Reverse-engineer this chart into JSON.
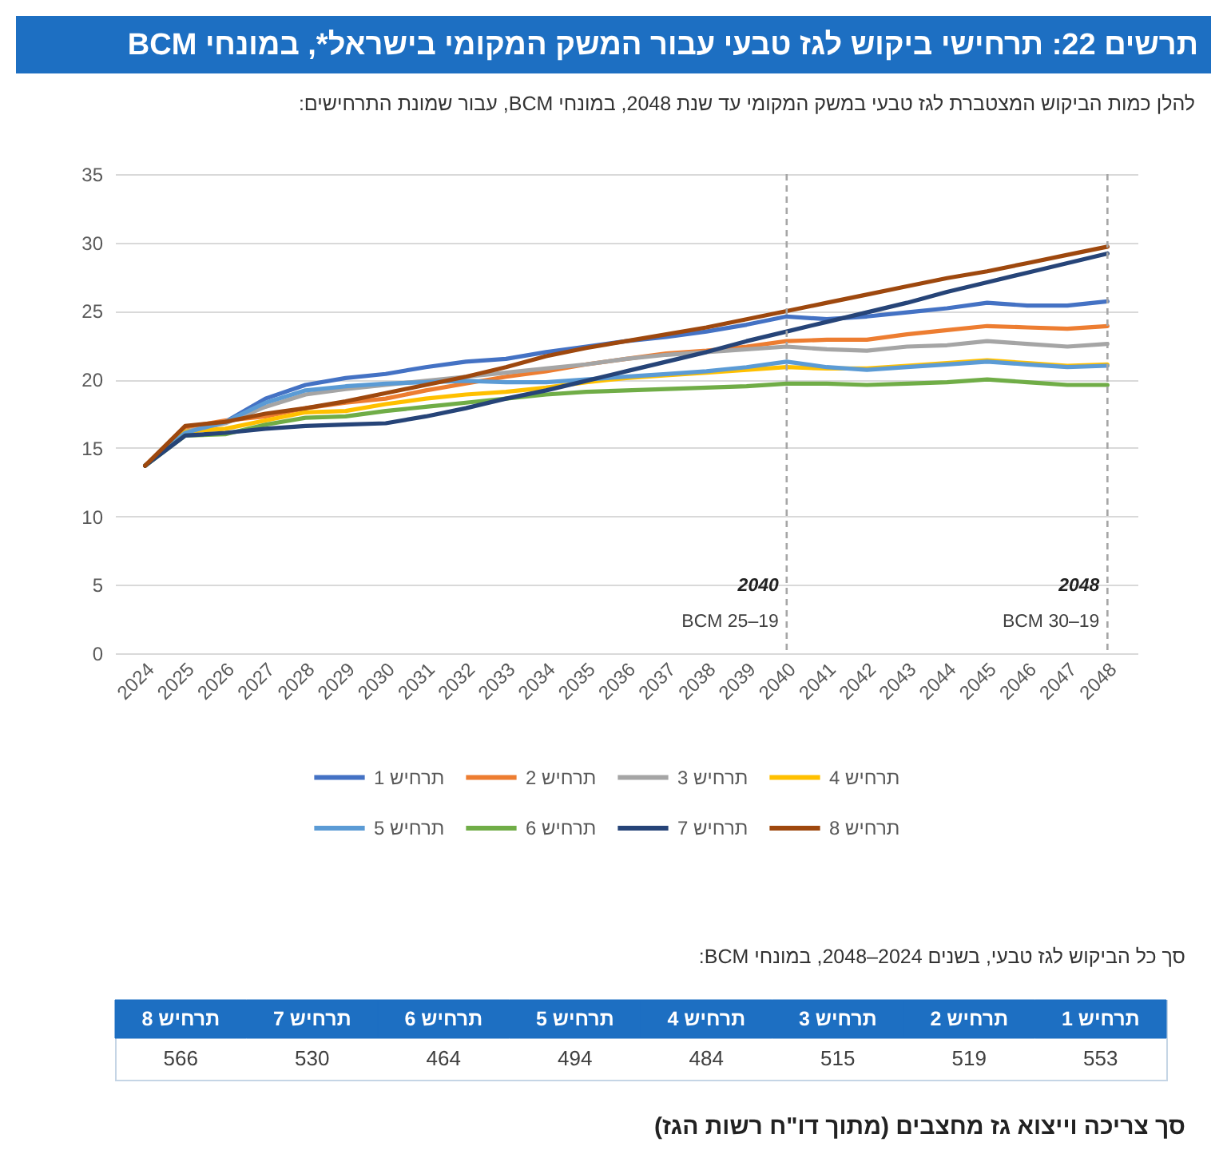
{
  "chart_data": [
    {
      "type": "line",
      "title": "תרשים 22: תרחישי ביקוש לגז טבעי עבור המשק המקומי בישראל*, במונחי BCM",
      "subtitle": "להלן כמות הביקוש המצטברת לגז טבעי במשק המקומי עד שנת 2048, במונחי BCM, עבור שמונת התרחישים:",
      "categories": [
        "2024",
        "2025",
        "2026",
        "2027",
        "2028",
        "2029",
        "2030",
        "2031",
        "2032",
        "2033",
        "2034",
        "2035",
        "2036",
        "2037",
        "2038",
        "2039",
        "2040",
        "2041",
        "2042",
        "2043",
        "2044",
        "2045",
        "2046",
        "2047",
        "2048"
      ],
      "series": [
        {
          "name": "תרחיש 1",
          "color": "#4472c4",
          "values": [
            13.7,
            16.0,
            16.9,
            18.6,
            19.6,
            20.1,
            20.4,
            20.9,
            21.3,
            21.5,
            22.0,
            22.4,
            22.8,
            23.1,
            23.5,
            24.0,
            24.6,
            24.4,
            24.6,
            24.9,
            25.2,
            25.6,
            25.4,
            25.4,
            25.7
          ]
        },
        {
          "name": "תרחיש 2",
          "color": "#ed7d31",
          "values": [
            13.7,
            16.5,
            17.0,
            17.3,
            17.9,
            18.3,
            18.6,
            19.2,
            19.7,
            20.2,
            20.6,
            21.1,
            21.5,
            21.9,
            22.1,
            22.4,
            22.8,
            22.9,
            22.9,
            23.3,
            23.6,
            23.9,
            23.8,
            23.7,
            23.9
          ]
        },
        {
          "name": "תרחיש 3",
          "color": "#a5a5a5",
          "values": [
            13.7,
            16.2,
            16.8,
            18.0,
            18.9,
            19.3,
            19.6,
            19.9,
            20.2,
            20.5,
            20.8,
            21.1,
            21.5,
            21.8,
            22.0,
            22.2,
            22.4,
            22.2,
            22.1,
            22.4,
            22.5,
            22.8,
            22.6,
            22.4,
            22.6
          ]
        },
        {
          "name": "תרחיש 4",
          "color": "#ffc000",
          "values": [
            13.7,
            16.2,
            16.4,
            17.0,
            17.6,
            17.7,
            18.2,
            18.6,
            18.9,
            19.1,
            19.4,
            19.8,
            20.1,
            20.3,
            20.5,
            20.7,
            20.9,
            20.8,
            20.8,
            21.0,
            21.2,
            21.4,
            21.2,
            21.0,
            21.1
          ]
        },
        {
          "name": "תרחיש 5",
          "color": "#5b9bd5",
          "values": [
            13.7,
            16.1,
            16.9,
            18.3,
            19.2,
            19.5,
            19.7,
            19.8,
            19.9,
            19.8,
            19.8,
            20.0,
            20.2,
            20.4,
            20.6,
            20.9,
            21.3,
            20.9,
            20.7,
            20.9,
            21.1,
            21.3,
            21.1,
            20.9,
            21.0
          ]
        },
        {
          "name": "תרחיש 6",
          "color": "#70ad47",
          "values": [
            13.7,
            15.9,
            16.0,
            16.7,
            17.2,
            17.3,
            17.7,
            18.0,
            18.3,
            18.6,
            18.9,
            19.1,
            19.2,
            19.3,
            19.4,
            19.5,
            19.7,
            19.7,
            19.6,
            19.7,
            19.8,
            20.0,
            19.8,
            19.6,
            19.6
          ]
        },
        {
          "name": "תרחיש 7",
          "color": "#264478",
          "values": [
            13.7,
            15.9,
            16.1,
            16.4,
            16.6,
            16.7,
            16.8,
            17.3,
            17.9,
            18.6,
            19.2,
            19.9,
            20.6,
            21.3,
            22.0,
            22.8,
            23.5,
            24.2,
            24.9,
            25.6,
            26.4,
            27.1,
            27.8,
            28.5,
            29.2
          ]
        },
        {
          "name": "תרחיש 8",
          "color": "#9e480e",
          "values": [
            13.7,
            16.6,
            16.9,
            17.5,
            17.9,
            18.4,
            19.0,
            19.6,
            20.2,
            20.9,
            21.7,
            22.3,
            22.8,
            23.3,
            23.8,
            24.4,
            25.0,
            25.6,
            26.2,
            26.8,
            27.4,
            27.9,
            28.5,
            29.1,
            29.7
          ]
        }
      ],
      "ylim": [
        0,
        35
      ],
      "yticks": [
        0,
        5,
        10,
        15,
        20,
        25,
        30,
        35
      ],
      "grid": "y",
      "legend": "bottom",
      "ref_lines": [
        {
          "axis": "x",
          "value": "2040",
          "label": "2040",
          "color": "#a6a6a6",
          "line_style": "dashed"
        },
        {
          "axis": "x",
          "value": "2048",
          "label": "2048",
          "color": "#a6a6a6",
          "line_style": "dashed"
        }
      ],
      "annotations": [
        {
          "text": "BCM 25–19",
          "x": "2040",
          "y": 2.3
        },
        {
          "text": "BCM 30–19",
          "x": "2048",
          "y": 2.3
        }
      ]
    },
    {
      "type": "other",
      "title": "סך כל הביקוש לגז טבעי, בשנים 2024–2048, במונחי BCM:",
      "categories": [
        "תרחיש 8",
        "תרחיש 7",
        "תרחיש 6",
        "תרחיש 5",
        "תרחיש 4",
        "תרחיש 3",
        "תרחיש 2",
        "תרחיש 1"
      ],
      "values": [
        566,
        530,
        464,
        494,
        484,
        515,
        519,
        553
      ],
      "data_labels": true,
      "annotations": [
        "סך צריכה וייצוא גז מחצבים (מתוך דו\"ח רשות הגז)"
      ]
    }
  ]
}
